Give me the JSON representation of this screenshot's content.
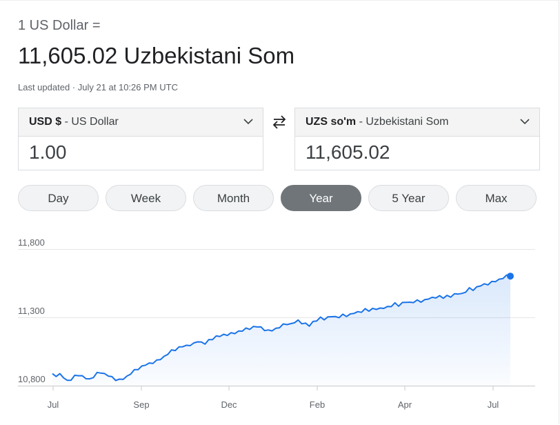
{
  "header": {
    "subtitle": "1 US Dollar =",
    "headline": "11,605.02 Uzbekistani Som",
    "last_updated": "Last updated · July 21 at 10:26 PM UTC"
  },
  "from": {
    "code": "USD $",
    "name": " - US Dollar",
    "amount": "1.00"
  },
  "to": {
    "code": "UZS so'm",
    "name": " - Uzbekistani Som",
    "amount": "11,605.02"
  },
  "ranges": [
    "Day",
    "Week",
    "Month",
    "Year",
    "5 Year",
    "Max"
  ],
  "active_range": "Year",
  "colors": {
    "line": "#1a73e8",
    "active_range": "#70757a"
  },
  "icons": {
    "swap": "swap-arrows-icon",
    "dropdown": "chevron-down-icon"
  },
  "chart_data": {
    "type": "line",
    "title": "",
    "xlabel": "",
    "ylabel": "",
    "y_ticks": [
      10800,
      11300,
      11800
    ],
    "y_tick_labels": [
      "10,800",
      "11,300",
      "11,800"
    ],
    "ylim": [
      10800,
      11800
    ],
    "x_tick_labels": [
      "Jul",
      "Sep",
      "Dec",
      "Feb",
      "Apr",
      "Jul"
    ],
    "grid": true,
    "values": [
      10888,
      10873,
      10876,
      10860,
      10830,
      10840,
      10870,
      10885,
      10870,
      10860,
      10850,
      10865,
      10885,
      10895,
      10880,
      10870,
      10860,
      10850,
      10845,
      10855,
      10870,
      10890,
      10905,
      10920,
      10935,
      10950,
      10960,
      10975,
      10985,
      11000,
      11015,
      11035,
      11050,
      11060,
      11075,
      11085,
      11090,
      11105,
      11110,
      11130,
      11120,
      11110,
      11125,
      11140,
      11155,
      11160,
      11170,
      11180,
      11185,
      11190,
      11200,
      11205,
      11210,
      11215,
      11225,
      11230,
      11225,
      11215,
      11205,
      11210,
      11220,
      11230,
      11240,
      11250,
      11245,
      11260,
      11275,
      11265,
      11255,
      11245,
      11270,
      11280,
      11290,
      11285,
      11295,
      11305,
      11300,
      11310,
      11320,
      11315,
      11325,
      11335,
      11330,
      11340,
      11355,
      11345,
      11360,
      11370,
      11365,
      11375,
      11380,
      11385,
      11395,
      11385,
      11400,
      11410,
      11405,
      11420,
      11425,
      11420,
      11430,
      11440,
      11435,
      11445,
      11450,
      11440,
      11455,
      11460,
      11470,
      11480,
      11475,
      11490,
      11505,
      11500,
      11515,
      11530,
      11540,
      11550,
      11560,
      11570,
      11580,
      11590,
      11598,
      11605.02
    ]
  },
  "chart_labels": {
    "y": [
      "10,800",
      "11,300",
      "11,800"
    ],
    "x": [
      "Jul",
      "Sep",
      "Dec",
      "Feb",
      "Apr",
      "Jul"
    ]
  }
}
